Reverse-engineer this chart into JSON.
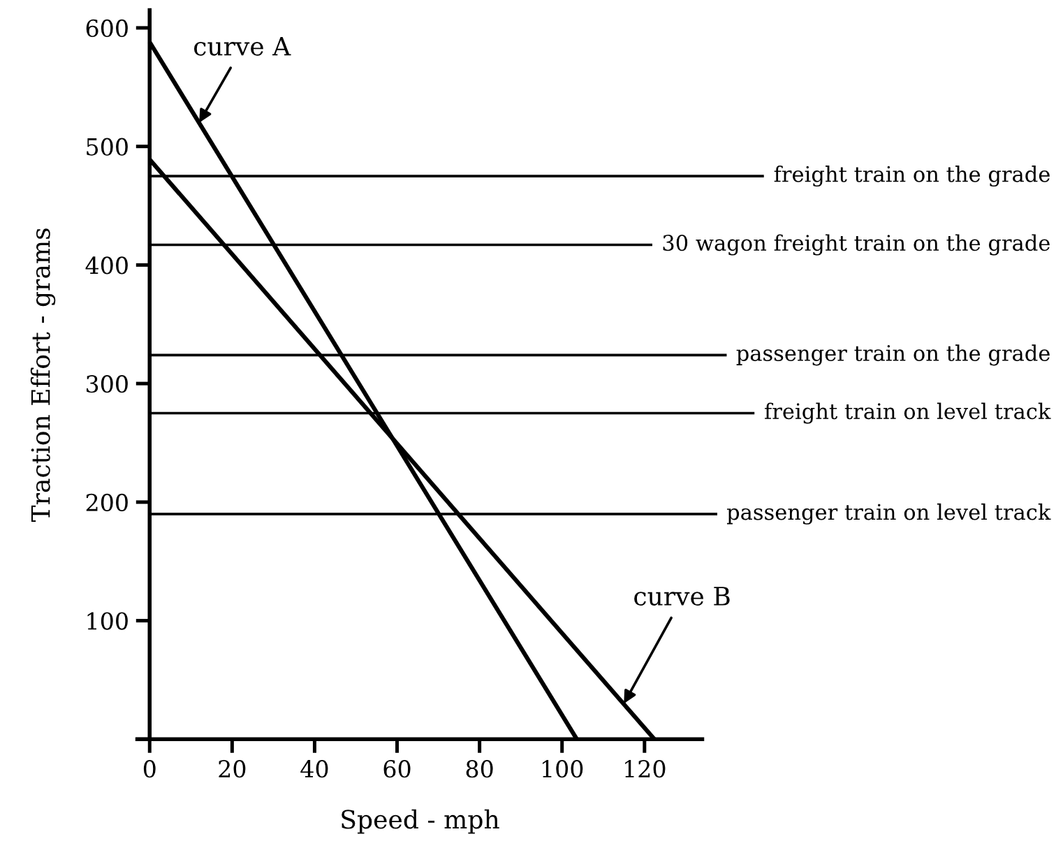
{
  "chart_data": {
    "type": "line",
    "xlabel": "Speed - mph",
    "ylabel": "Traction Effort - grams",
    "xlim": [
      -3,
      134
    ],
    "xticks": [
      0,
      20,
      40,
      60,
      80,
      100,
      120
    ],
    "ylim": [
      0,
      615
    ],
    "yticks": [
      {
        "value": 0,
        "label": null
      },
      100,
      200,
      300,
      400,
      500,
      600
    ],
    "grid": false,
    "legend": false,
    "marker": "none",
    "line_style": "solid",
    "series": [
      {
        "color": "#000000",
        "x": [
          0,
          103.6
        ],
        "values": [
          588,
          0
        ]
      },
      {
        "color": "#000000",
        "x": [
          0,
          122.4
        ],
        "values": [
          489,
          0
        ]
      }
    ],
    "ref_lines": [
      {
        "axis": "y",
        "value": 475,
        "label": "freight train on the grade",
        "color": "#000000"
      },
      {
        "axis": "y",
        "value": 417,
        "label": "30 wagon freight train on the grade",
        "color": "#000000"
      },
      {
        "axis": "y",
        "value": 324,
        "label": "passenger train on the grade",
        "color": "#000000"
      },
      {
        "axis": "y",
        "value": 275,
        "label": "freight train on level track",
        "color": "#000000"
      },
      {
        "axis": "y",
        "value": 190,
        "label": "passenger train on level track",
        "color": "#000000"
      }
    ],
    "annotations": [
      {
        "text": "curve A",
        "x": 12,
        "y": 520
      },
      {
        "text": "curve B",
        "x": 115,
        "y": 30
      }
    ]
  }
}
